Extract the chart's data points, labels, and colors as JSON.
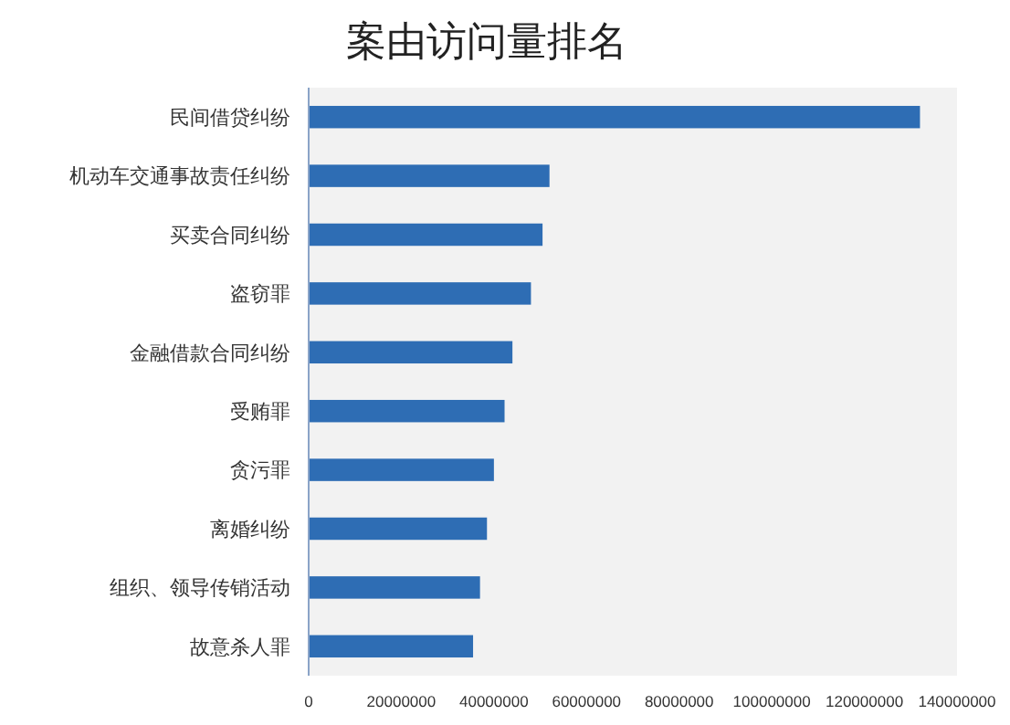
{
  "chart_data": {
    "type": "bar",
    "orientation": "horizontal",
    "title": "案由访问量排名",
    "categories": [
      "民间借贷纠纷",
      "机动车交通事故责任纠纷",
      "买卖合同纠纷",
      "盗窃罪",
      "金融借款合同纠纷",
      "受贿罪",
      "贪污罪",
      "离婚纠纷",
      "组织、领导传销活动",
      "故意杀人罪"
    ],
    "values": [
      132000000,
      52000000,
      50500000,
      48000000,
      44000000,
      42300000,
      40000000,
      38500000,
      37000000,
      35500000
    ],
    "color": "#2e6db4",
    "xlim": [
      0,
      140000000
    ],
    "xticks": [
      0,
      20000000,
      40000000,
      60000000,
      80000000,
      100000000,
      120000000,
      140000000
    ],
    "grid": false
  }
}
